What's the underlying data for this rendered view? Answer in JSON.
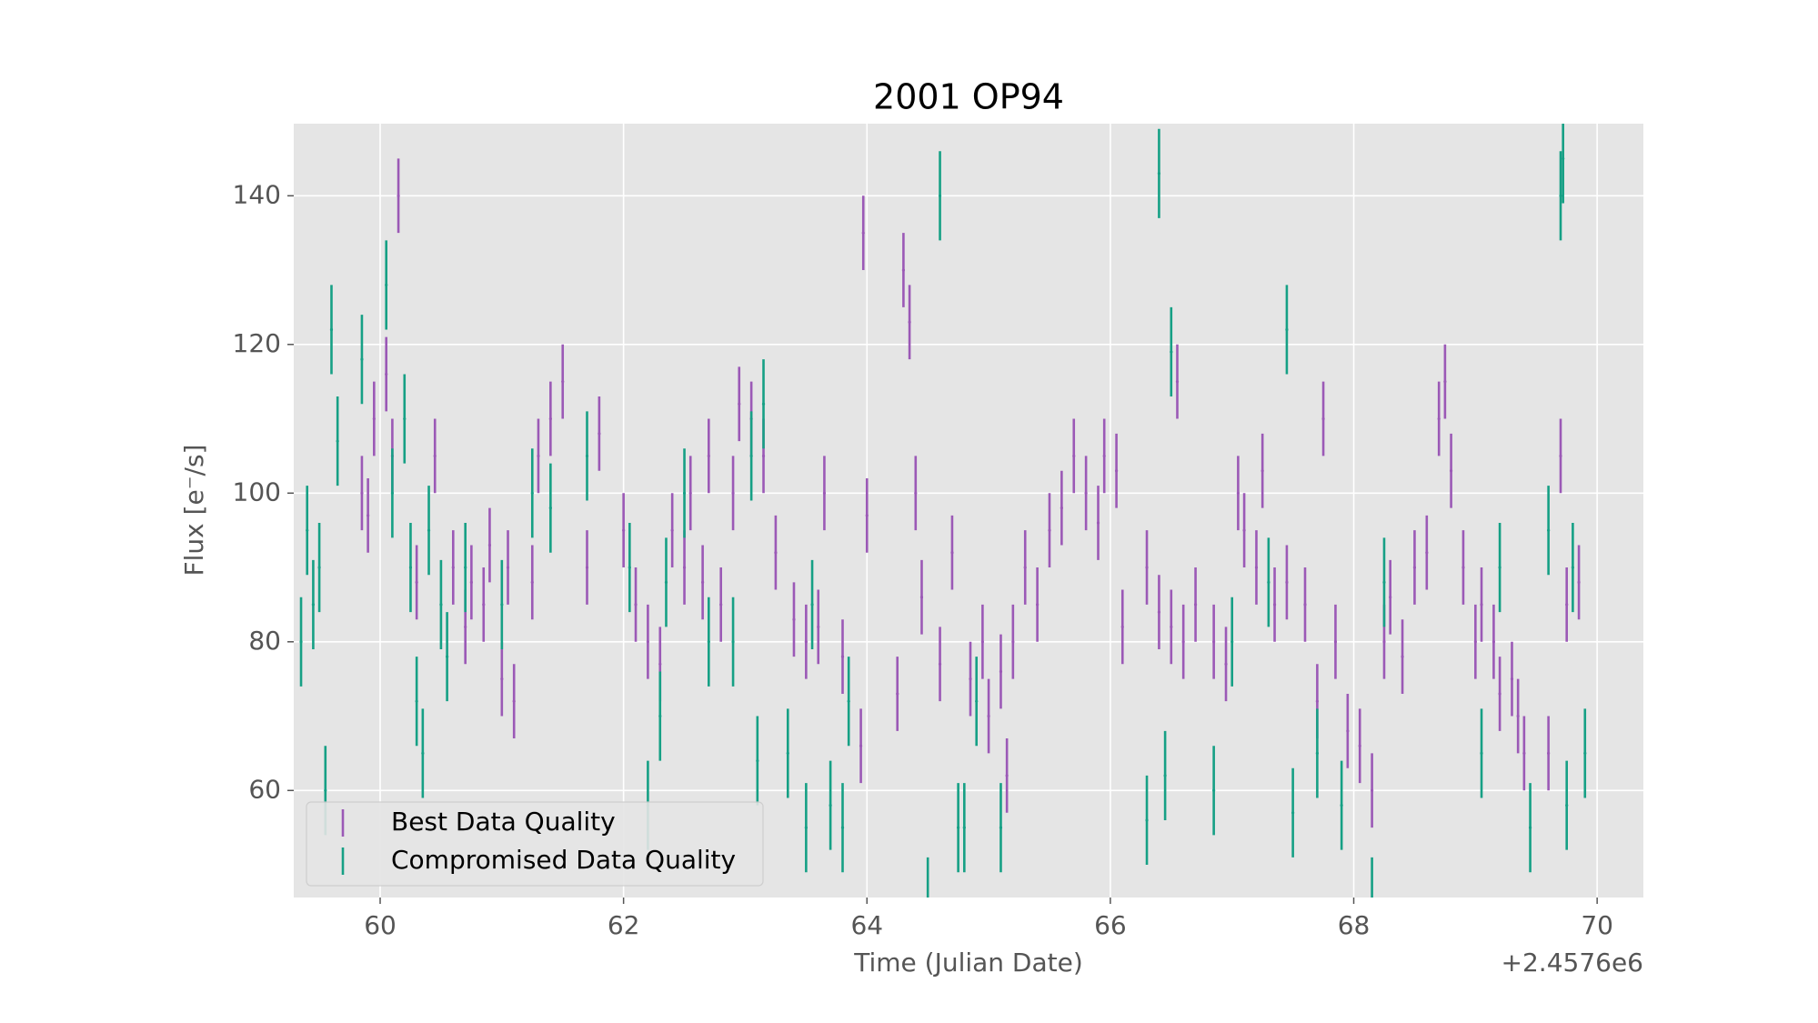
{
  "chart_data": {
    "type": "errorbar",
    "title": "2001 OP94",
    "xlabel": "Time (Julian Date)",
    "ylabel": "Flux [e⁻/s]",
    "x_offset_label": "+2.4576e6",
    "xlim": [
      59.29,
      70.38
    ],
    "ylim": [
      45.6,
      149.7
    ],
    "xticks": [
      60,
      62,
      64,
      66,
      68,
      70
    ],
    "yticks": [
      60,
      80,
      100,
      120,
      140
    ],
    "grid": true,
    "legend": "lower left",
    "series": [
      {
        "name": "Best Data Quality",
        "color": "#9b59b6",
        "yerr": 5,
        "x": [
          59.85,
          59.9,
          59.95,
          60.05,
          60.1,
          60.15,
          60.3,
          60.45,
          60.6,
          60.7,
          60.75,
          60.85,
          60.9,
          61.0,
          61.05,
          61.1,
          61.25,
          61.3,
          61.4,
          61.5,
          61.7,
          61.8,
          62.0,
          62.1,
          62.2,
          62.3,
          62.4,
          62.5,
          62.55,
          62.65,
          62.7,
          62.8,
          62.9,
          62.95,
          63.05,
          63.15,
          63.25,
          63.4,
          63.5,
          63.6,
          63.65,
          63.8,
          63.95,
          63.97,
          64.0,
          64.25,
          64.3,
          64.35,
          64.4,
          64.45,
          64.6,
          64.7,
          64.85,
          64.95,
          65.0,
          65.1,
          65.15,
          65.2,
          65.3,
          65.4,
          65.5,
          65.6,
          65.7,
          65.8,
          65.9,
          65.95,
          66.05,
          66.1,
          66.3,
          66.4,
          66.5,
          66.55,
          66.6,
          66.7,
          66.85,
          66.95,
          67.05,
          67.1,
          67.2,
          67.25,
          67.35,
          67.45,
          67.6,
          67.7,
          67.75,
          67.85,
          67.95,
          68.05,
          68.15,
          68.25,
          68.3,
          68.4,
          68.5,
          68.6,
          68.7,
          68.75,
          68.8,
          68.9,
          69.0,
          69.05,
          69.15,
          69.2,
          69.3,
          69.35,
          69.4,
          69.6,
          69.7,
          69.75,
          69.85
        ],
        "values": [
          100,
          97,
          110,
          116,
          105,
          140,
          88,
          105,
          90,
          82,
          88,
          85,
          93,
          75,
          90,
          72,
          88,
          105,
          110,
          115,
          90,
          108,
          95,
          85,
          80,
          77,
          95,
          90,
          100,
          88,
          105,
          85,
          100,
          112,
          110,
          105,
          92,
          83,
          80,
          82,
          100,
          78,
          66,
          135,
          97,
          73,
          130,
          123,
          100,
          86,
          77,
          92,
          75,
          80,
          70,
          76,
          62,
          80,
          90,
          85,
          95,
          98,
          105,
          100,
          96,
          105,
          103,
          82,
          90,
          84,
          82,
          115,
          80,
          85,
          80,
          77,
          100,
          95,
          90,
          103,
          85,
          88,
          85,
          72,
          110,
          80,
          68,
          66,
          60,
          80,
          86,
          78,
          90,
          92,
          110,
          115,
          103,
          90,
          80,
          85,
          80,
          73,
          75,
          70,
          65,
          65,
          105,
          85,
          88
        ]
      },
      {
        "name": "Compromised Data Quality",
        "color": "#16a085",
        "yerr": 6,
        "x": [
          59.35,
          59.4,
          59.45,
          59.5,
          59.55,
          59.6,
          59.65,
          59.85,
          60.05,
          60.1,
          60.2,
          60.25,
          60.3,
          60.35,
          60.4,
          60.5,
          60.55,
          60.7,
          61.0,
          61.25,
          61.4,
          61.7,
          62.05,
          62.2,
          62.3,
          62.35,
          62.5,
          62.7,
          62.9,
          63.05,
          63.1,
          63.15,
          63.35,
          63.5,
          63.55,
          63.7,
          63.8,
          63.85,
          64.5,
          64.6,
          64.75,
          64.8,
          64.9,
          65.1,
          66.3,
          66.4,
          66.45,
          66.5,
          66.85,
          67.0,
          67.3,
          67.45,
          67.5,
          67.7,
          67.9,
          68.15,
          68.25,
          69.05,
          69.2,
          69.45,
          69.6,
          69.7,
          69.72,
          69.75,
          69.8,
          69.9
        ],
        "values": [
          80,
          95,
          85,
          90,
          60,
          122,
          107,
          118,
          128,
          100,
          110,
          90,
          72,
          65,
          95,
          85,
          78,
          90,
          85,
          100,
          98,
          105,
          90,
          58,
          70,
          88,
          100,
          80,
          80,
          105,
          64,
          112,
          65,
          55,
          85,
          58,
          55,
          72,
          45,
          140,
          55,
          55,
          72,
          55,
          56,
          143,
          62,
          119,
          60,
          80,
          88,
          122,
          57,
          65,
          58,
          45,
          88,
          65,
          90,
          55,
          95,
          140,
          145,
          58,
          90,
          65
        ]
      }
    ]
  }
}
